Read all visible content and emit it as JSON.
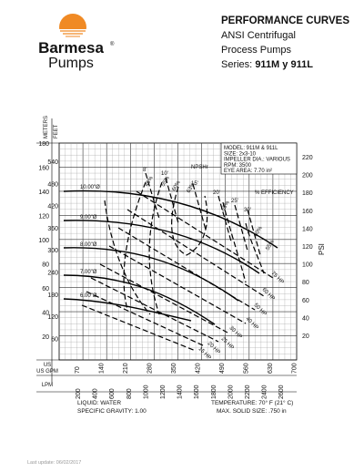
{
  "logo": {
    "name": "Barmesa",
    "registered": "®",
    "subname": "Pumps"
  },
  "header": {
    "title": "PERFORMANCE CURVES",
    "line1": "ANSI Centrifugal",
    "line2": "Process Pumps",
    "series_label": "Series:",
    "series": "911M y 911L"
  },
  "axes": {
    "meters_label": "METERS",
    "feet_label": "FEET",
    "psi_label": "PSI",
    "gpm_label": "US GPM",
    "lpm_label": "LPM",
    "meters": [
      "180",
      "160",
      "140",
      "120",
      "100",
      "80",
      "60",
      "40",
      "20"
    ],
    "feet": [
      "540",
      "480",
      "420",
      "360",
      "300",
      "240",
      "180",
      "120",
      "60"
    ],
    "psi": [
      "220",
      "200",
      "180",
      "160",
      "140",
      "120",
      "100",
      "80",
      "60",
      "40",
      "20"
    ],
    "gpm": [
      "70",
      "140",
      "210",
      "280",
      "350",
      "420",
      "490",
      "560",
      "630",
      "700"
    ],
    "lpm": [
      "200",
      "400",
      "600",
      "800",
      "1000",
      "1200",
      "1400",
      "1600",
      "1800",
      "2000",
      "2200",
      "2400",
      "2600"
    ]
  },
  "model_box": [
    "MODEL: 911M & 911L",
    "SIZE: 2x3-10",
    "IMPELLER DIA.: VARIOUS",
    "RPM: 3500",
    "EYE AREA: 7.70 in²"
  ],
  "curve_labels": {
    "efficiency": "% EFFICIENCY",
    "npsh": "NPSHr",
    "diameters": [
      "10.00\"Ø",
      "9.00\"Ø",
      "8.00\"Ø",
      "7.00\"Ø",
      "6.00\"Ø"
    ],
    "npsh_values": [
      "8'",
      "10'",
      "15'",
      "20'",
      "25'",
      "30'"
    ],
    "efficiencies": [
      "45%",
      "55%",
      "60%",
      "63%",
      "63%",
      "60%",
      "55%"
    ],
    "hp": [
      "75 HP",
      "60 HP",
      "50 HP",
      "40 HP",
      "30 HP",
      "25 HP",
      "20 HP",
      "15 HP"
    ]
  },
  "conditions": {
    "liquid": "LIQUID: WATER",
    "gravity": "SPECIFIC GRAVITY: 1.00",
    "temperature": "TEMPERATURE: 70° F (21° C)",
    "solid": "MAX. SOLID SIZE: .750 in"
  },
  "footer": "Last update: 06/02/2017"
}
